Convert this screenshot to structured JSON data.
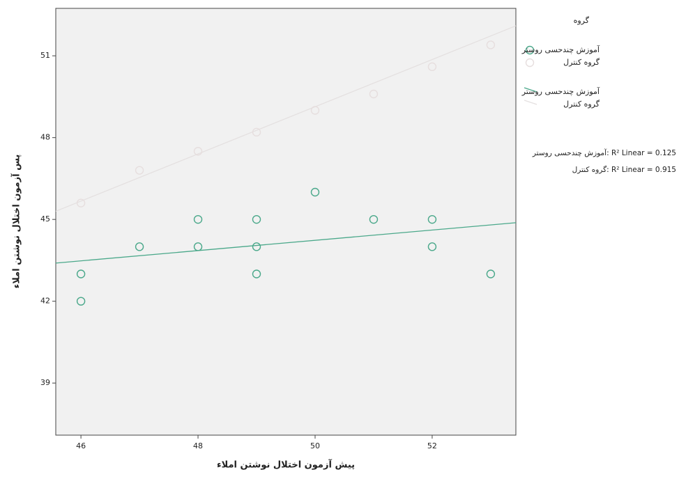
{
  "chart_data": {
    "type": "scatter",
    "x_label": "پیش آزمون اختلال نوشتن املاء",
    "y_label": "پس آزمون اختلال نوشتن املاء",
    "xlim": [
      45.57,
      53.43
    ],
    "ylim": [
      37.09,
      52.74
    ],
    "xticks": [
      46,
      48,
      50,
      52
    ],
    "yticks": [
      39,
      42,
      45,
      48,
      51
    ],
    "legend_title": "گروه",
    "series": [
      {
        "name": "آموزش چندحسی روستر",
        "color": "#4aa88a",
        "x": [
          46,
          46,
          47,
          48,
          48,
          49,
          49,
          49,
          50,
          51,
          52,
          52,
          53
        ],
        "values": [
          43,
          42,
          44,
          45,
          44,
          45,
          44,
          43,
          46,
          45,
          45,
          44,
          43
        ]
      },
      {
        "name": "گروه کنترل",
        "color": "#e6dede",
        "x": [
          46,
          47,
          48,
          49,
          50,
          51,
          52,
          53
        ],
        "values": [
          45.6,
          46.8,
          47.5,
          48.2,
          49,
          49.6,
          50.6,
          51.4
        ]
      }
    ],
    "fit_lines": [
      {
        "name": "آموزش چندحسی روستر",
        "color": "#4aa88a",
        "x": [
          45.57,
          53.43
        ],
        "values": [
          43.4,
          44.88
        ]
      },
      {
        "name": "گروه کنترل",
        "color": "#e4e0e0",
        "x": [
          45.57,
          53.43
        ],
        "values": [
          45.3,
          52.1
        ]
      }
    ],
    "annotations": [
      "آموزش چندحسی روستر: R² Linear = 0.125",
      "گروه کنترل: R² Linear = 0.915"
    ]
  }
}
